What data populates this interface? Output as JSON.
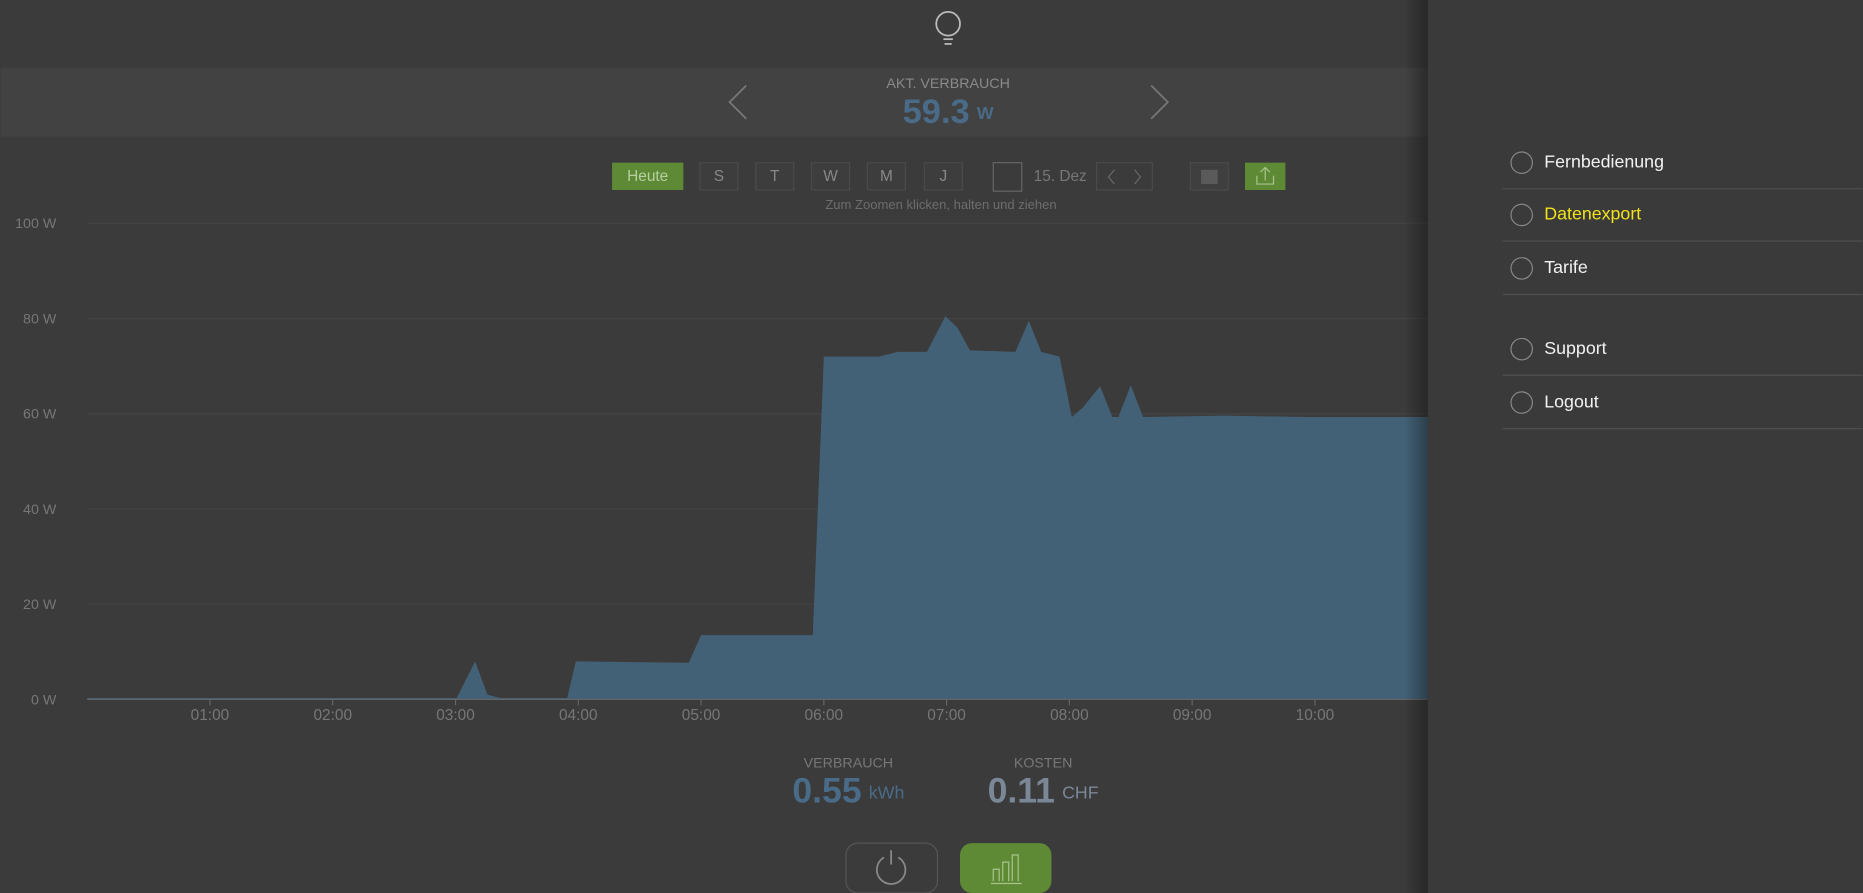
{
  "header": {
    "label": "AKT. VERBRAUCH",
    "value": "59.3",
    "unit": "W"
  },
  "toolbar": {
    "buttons": [
      "Heute",
      "S",
      "T",
      "W",
      "M",
      "J"
    ],
    "date": "15. Dez",
    "hint": "Zum Zoomen klicken, halten und ziehen"
  },
  "chart_data": {
    "type": "area",
    "x": [
      0,
      3.01,
      3.16,
      3.26,
      3.36,
      3.91,
      3.98,
      4.9,
      5.0,
      5.91,
      6.0,
      6.26,
      6.45,
      6.6,
      6.84,
      6.99,
      7.09,
      7.19,
      7.56,
      7.67,
      7.77,
      7.92,
      8.02,
      8.11,
      8.25,
      8.35,
      8.4,
      8.5,
      8.6,
      9.26,
      9.93,
      10.92
    ],
    "values": [
      0.3,
      0.3,
      8,
      1,
      0.3,
      0.3,
      8,
      7.7,
      13.5,
      13.5,
      72,
      72,
      72,
      73,
      73,
      80.5,
      78,
      73.3,
      73,
      79.5,
      73,
      72,
      59.3,
      61.3,
      65.8,
      59.3,
      59.3,
      66,
      59.3,
      59.6,
      59.3,
      59.3
    ],
    "color": "#436176",
    "xlim": [
      0,
      10.92
    ],
    "xticks": [
      {
        "value": 1,
        "label": "01:00"
      },
      {
        "value": 2,
        "label": "02:00"
      },
      {
        "value": 3,
        "label": "03:00"
      },
      {
        "value": 4,
        "label": "04:00"
      },
      {
        "value": 5,
        "label": "05:00"
      },
      {
        "value": 6,
        "label": "06:00"
      },
      {
        "value": 7,
        "label": "07:00"
      },
      {
        "value": 8,
        "label": "08:00"
      },
      {
        "value": 9,
        "label": "09:00"
      },
      {
        "value": 10,
        "label": "10:00"
      }
    ],
    "ylim": [
      0,
      100
    ],
    "yticks": [
      {
        "value": 0,
        "label": "0 W"
      },
      {
        "value": 20,
        "label": "20 W"
      },
      {
        "value": 40,
        "label": "40 W"
      },
      {
        "value": 60,
        "label": "60 W"
      },
      {
        "value": 80,
        "label": "80 W"
      },
      {
        "value": 100,
        "label": "100 W"
      }
    ],
    "grid": true
  },
  "summary": [
    {
      "label": "VERBRAUCH",
      "value": "0.55",
      "unit": "kWh"
    },
    {
      "label": "KOSTEN",
      "value": "0.11",
      "unit": "CHF"
    }
  ],
  "menu": {
    "items": [
      "Fernbedienung",
      "Datenexport",
      "Tarife",
      "Support",
      "Logout"
    ]
  }
}
